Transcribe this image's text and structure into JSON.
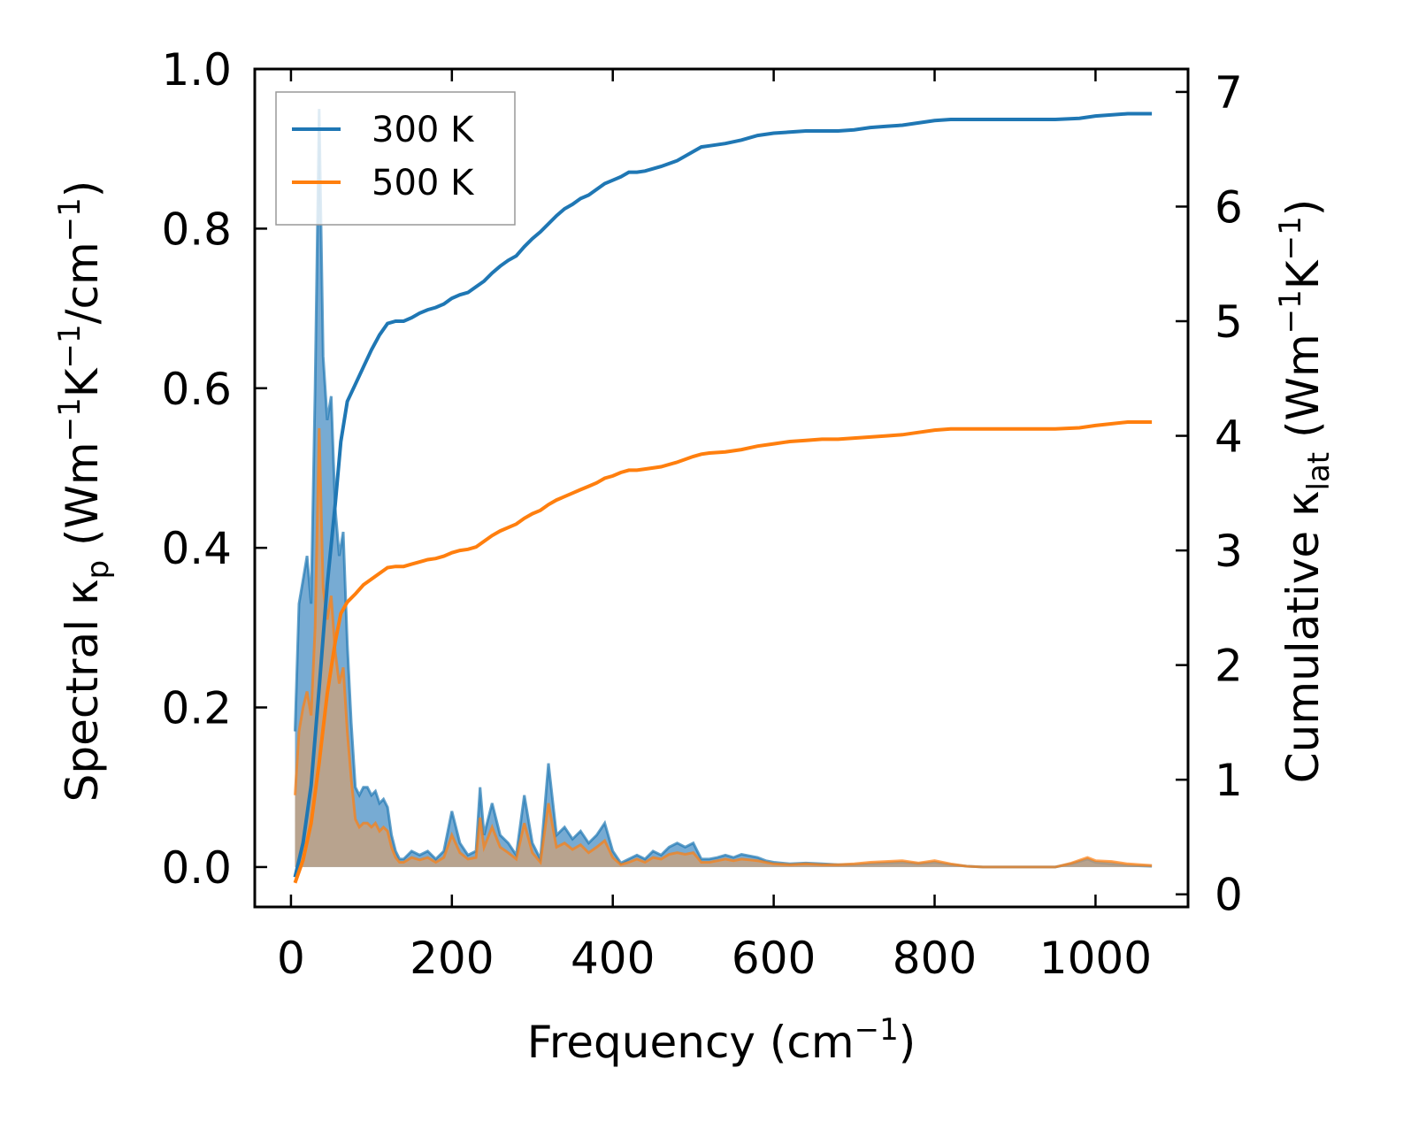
{
  "chart_data": {
    "type": "line",
    "xlabel": "Frequency (cm",
    "xlabel_sup": "−1",
    "xlabel_end": ")",
    "ylabel_left": {
      "parts": [
        "Spectral κ",
        "p",
        " (Wm",
        "−1",
        "K",
        "−1",
        "/cm",
        "−1",
        ")"
      ]
    },
    "ylabel_right": {
      "parts": [
        "Cumulative κ",
        "lat",
        " (Wm",
        "−1",
        "K",
        "−1",
        ")"
      ]
    },
    "xlim": [
      -45,
      1115
    ],
    "ylim_left": [
      -0.05,
      1.0
    ],
    "ylim_right": [
      -0.11,
      7.2
    ],
    "xticks": [
      0,
      200,
      400,
      600,
      800,
      1000
    ],
    "xtick_labels": [
      "0",
      "200",
      "400",
      "600",
      "800",
      "1000"
    ],
    "yticks_left": [
      0.0,
      0.2,
      0.4,
      0.6,
      0.8,
      1.0
    ],
    "ytick_labels_left": [
      "0.0",
      "0.2",
      "0.4",
      "0.6",
      "0.8",
      "1.0"
    ],
    "yticks_right": [
      0,
      1,
      2,
      3,
      4,
      5,
      6,
      7
    ],
    "ytick_labels_right": [
      "0",
      "1",
      "2",
      "3",
      "4",
      "5",
      "6",
      "7"
    ],
    "legend": {
      "placement": "top-left",
      "entries": [
        "300 K",
        "500 K"
      ]
    },
    "colors": {
      "300 K": "#1f77b4",
      "500 K": "#ff7f0e",
      "fill_300": "#4a8fc4",
      "fill_500": "#d4a070"
    },
    "series": [
      {
        "name": "300 K",
        "spectral": {
          "x": [
            5,
            10,
            15,
            20,
            25,
            30,
            35,
            40,
            45,
            50,
            55,
            60,
            65,
            70,
            75,
            80,
            85,
            90,
            95,
            100,
            105,
            110,
            115,
            120,
            125,
            130,
            135,
            140,
            150,
            160,
            170,
            180,
            190,
            200,
            210,
            220,
            230,
            235,
            240,
            250,
            260,
            270,
            280,
            290,
            300,
            310,
            320,
            330,
            340,
            350,
            360,
            370,
            380,
            390,
            400,
            410,
            420,
            430,
            440,
            450,
            460,
            470,
            480,
            490,
            500,
            510,
            520,
            530,
            540,
            550,
            560,
            570,
            580,
            590,
            600,
            620,
            640,
            660,
            680,
            700,
            720,
            740,
            760,
            780,
            800,
            820,
            840,
            860,
            900,
            950,
            970,
            990,
            1000,
            1020,
            1040,
            1070
          ],
          "y": [
            0.17,
            0.33,
            0.36,
            0.39,
            0.33,
            0.6,
            0.95,
            0.64,
            0.56,
            0.59,
            0.45,
            0.39,
            0.42,
            0.28,
            0.18,
            0.1,
            0.09,
            0.1,
            0.1,
            0.09,
            0.095,
            0.08,
            0.085,
            0.075,
            0.04,
            0.02,
            0.01,
            0.01,
            0.02,
            0.015,
            0.02,
            0.01,
            0.02,
            0.07,
            0.03,
            0.015,
            0.02,
            0.1,
            0.04,
            0.08,
            0.04,
            0.03,
            0.015,
            0.09,
            0.03,
            0.01,
            0.13,
            0.04,
            0.05,
            0.035,
            0.045,
            0.03,
            0.04,
            0.055,
            0.02,
            0.005,
            0.01,
            0.015,
            0.01,
            0.02,
            0.015,
            0.025,
            0.03,
            0.025,
            0.03,
            0.01,
            0.01,
            0.012,
            0.015,
            0.012,
            0.016,
            0.014,
            0.012,
            0.008,
            0.006,
            0.004,
            0.005,
            0.004,
            0.003,
            0.003,
            0.004,
            0.005,
            0.006,
            0.004,
            0.006,
            0.003,
            0.001,
            0.0,
            0.0,
            0.0,
            0.004,
            0.01,
            0.006,
            0.004,
            0.002,
            0.001
          ]
        },
        "cumulative": {
          "x": [
            5,
            15,
            25,
            35,
            45,
            55,
            62,
            70,
            80,
            90,
            100,
            110,
            120,
            130,
            140,
            150,
            160,
            170,
            180,
            190,
            200,
            210,
            220,
            230,
            240,
            250,
            260,
            270,
            280,
            290,
            300,
            310,
            320,
            330,
            340,
            350,
            360,
            370,
            380,
            390,
            400,
            410,
            420,
            430,
            440,
            460,
            480,
            500,
            510,
            520,
            540,
            560,
            580,
            600,
            620,
            640,
            660,
            680,
            700,
            720,
            740,
            760,
            780,
            800,
            820,
            860,
            900,
            950,
            980,
            1000,
            1040,
            1070
          ],
          "y": [
            0.15,
            0.45,
            0.95,
            1.8,
            2.7,
            3.4,
            3.95,
            4.3,
            4.45,
            4.6,
            4.75,
            4.88,
            4.98,
            5.0,
            5.0,
            5.03,
            5.07,
            5.1,
            5.12,
            5.15,
            5.2,
            5.23,
            5.25,
            5.3,
            5.35,
            5.42,
            5.48,
            5.53,
            5.57,
            5.65,
            5.72,
            5.78,
            5.85,
            5.92,
            5.98,
            6.02,
            6.07,
            6.1,
            6.15,
            6.2,
            6.23,
            6.26,
            6.3,
            6.3,
            6.31,
            6.35,
            6.4,
            6.48,
            6.52,
            6.53,
            6.55,
            6.58,
            6.62,
            6.64,
            6.65,
            6.66,
            6.66,
            6.66,
            6.67,
            6.69,
            6.7,
            6.71,
            6.73,
            6.75,
            6.76,
            6.76,
            6.76,
            6.76,
            6.77,
            6.79,
            6.81,
            6.81
          ]
        }
      },
      {
        "name": "500 K",
        "spectral": {
          "x": [
            5,
            10,
            15,
            20,
            25,
            30,
            35,
            40,
            45,
            50,
            55,
            60,
            65,
            70,
            75,
            80,
            85,
            90,
            95,
            100,
            105,
            110,
            115,
            120,
            125,
            130,
            135,
            140,
            150,
            160,
            170,
            180,
            190,
            200,
            210,
            220,
            230,
            235,
            240,
            250,
            260,
            270,
            280,
            290,
            300,
            310,
            320,
            330,
            340,
            350,
            360,
            370,
            380,
            390,
            400,
            410,
            420,
            430,
            440,
            450,
            460,
            470,
            480,
            490,
            500,
            510,
            520,
            530,
            540,
            550,
            560,
            570,
            580,
            590,
            600,
            620,
            640,
            660,
            680,
            700,
            720,
            740,
            760,
            780,
            800,
            820,
            840,
            860,
            900,
            950,
            970,
            990,
            1000,
            1020,
            1040,
            1070
          ],
          "y": [
            0.09,
            0.17,
            0.2,
            0.22,
            0.19,
            0.3,
            0.55,
            0.35,
            0.31,
            0.34,
            0.27,
            0.23,
            0.25,
            0.17,
            0.11,
            0.06,
            0.05,
            0.055,
            0.055,
            0.05,
            0.055,
            0.045,
            0.05,
            0.045,
            0.025,
            0.012,
            0.006,
            0.006,
            0.012,
            0.009,
            0.012,
            0.006,
            0.012,
            0.04,
            0.018,
            0.01,
            0.012,
            0.062,
            0.025,
            0.05,
            0.025,
            0.018,
            0.01,
            0.055,
            0.018,
            0.006,
            0.08,
            0.025,
            0.03,
            0.022,
            0.028,
            0.018,
            0.025,
            0.033,
            0.012,
            0.003,
            0.006,
            0.01,
            0.006,
            0.012,
            0.01,
            0.016,
            0.018,
            0.016,
            0.018,
            0.006,
            0.006,
            0.008,
            0.01,
            0.008,
            0.01,
            0.009,
            0.008,
            0.006,
            0.004,
            0.003,
            0.004,
            0.003,
            0.003,
            0.004,
            0.006,
            0.007,
            0.008,
            0.005,
            0.008,
            0.004,
            0.001,
            0.0,
            0.0,
            0.0,
            0.005,
            0.012,
            0.008,
            0.007,
            0.004,
            0.002
          ]
        },
        "cumulative": {
          "x": [
            5,
            15,
            25,
            35,
            45,
            55,
            62,
            70,
            80,
            90,
            100,
            110,
            120,
            130,
            140,
            150,
            160,
            170,
            180,
            190,
            200,
            210,
            220,
            230,
            240,
            250,
            260,
            270,
            280,
            290,
            300,
            310,
            320,
            330,
            340,
            350,
            360,
            370,
            380,
            390,
            400,
            410,
            420,
            430,
            440,
            460,
            480,
            500,
            510,
            520,
            540,
            560,
            580,
            600,
            620,
            640,
            660,
            680,
            700,
            720,
            740,
            760,
            780,
            800,
            820,
            860,
            900,
            950,
            980,
            1000,
            1040,
            1070
          ],
          "y": [
            0.1,
            0.3,
            0.62,
            1.15,
            1.75,
            2.2,
            2.45,
            2.55,
            2.62,
            2.7,
            2.75,
            2.8,
            2.85,
            2.86,
            2.86,
            2.88,
            2.9,
            2.92,
            2.93,
            2.95,
            2.98,
            3.0,
            3.01,
            3.03,
            3.08,
            3.13,
            3.17,
            3.2,
            3.23,
            3.28,
            3.32,
            3.35,
            3.4,
            3.44,
            3.47,
            3.5,
            3.53,
            3.56,
            3.59,
            3.63,
            3.65,
            3.68,
            3.7,
            3.7,
            3.71,
            3.73,
            3.77,
            3.82,
            3.84,
            3.85,
            3.86,
            3.88,
            3.91,
            3.93,
            3.95,
            3.96,
            3.97,
            3.97,
            3.98,
            3.99,
            4.0,
            4.01,
            4.03,
            4.05,
            4.06,
            4.06,
            4.06,
            4.06,
            4.07,
            4.09,
            4.12,
            4.12
          ]
        }
      }
    ]
  }
}
